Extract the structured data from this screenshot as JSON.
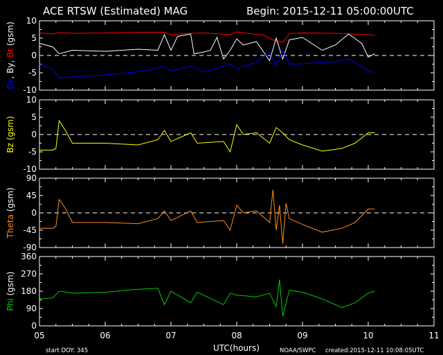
{
  "header": {
    "title": "ACE RTSW (Estimated) MAG",
    "begin": "Begin: 2015-12-11 05:00:00UTC"
  },
  "footer": {
    "start_doy": "start DOY:  345",
    "xlabel": "UTC(hours)",
    "agency": "NOAA/SWPC",
    "created": "created:2015-12-11 10:08:05UTC"
  },
  "colors": {
    "bt": "#ff0000",
    "by": "#ffffff",
    "bx": "#0000ff",
    "bz": "#ffff00",
    "theta": "#ff8c1a",
    "phi": "#00cc00",
    "axes": "#ffffff"
  },
  "chart_data": [
    {
      "type": "line",
      "panel": "magnetic-field",
      "ylabel_parts": [
        {
          "text": "Bx",
          "color": "#0000ff"
        },
        {
          "text": ", By, ",
          "color": "#ffffff"
        },
        {
          "text": "Bt",
          "color": "#ff0000"
        },
        {
          "text": " (gsm)",
          "color": "#ffffff"
        }
      ],
      "ylim": [
        -10,
        10
      ],
      "yticks": [
        "10",
        "5",
        "0",
        "-5",
        "-10"
      ],
      "zero_line": true,
      "series": [
        {
          "name": "Bt",
          "color": "#ff0000",
          "x": [
            5.0,
            5.2,
            5.3,
            5.5,
            6.0,
            6.5,
            6.9,
            7.0,
            7.3,
            7.5,
            7.9,
            8.0,
            8.2,
            8.4,
            8.55,
            8.7,
            8.8,
            9.0,
            9.5,
            10.0,
            10.1
          ],
          "y": [
            6.5,
            6.2,
            6.6,
            6.4,
            6.5,
            6.7,
            6.7,
            6.0,
            6.4,
            6.5,
            6.0,
            6.8,
            6.3,
            5.9,
            4.5,
            3.8,
            6.3,
            6.5,
            6.4,
            6.0,
            5.8
          ]
        },
        {
          "name": "By",
          "color": "#ffffff",
          "x": [
            5.0,
            5.2,
            5.3,
            5.5,
            6.0,
            6.5,
            6.8,
            6.9,
            7.0,
            7.1,
            7.3,
            7.35,
            7.5,
            7.6,
            7.7,
            7.8,
            7.9,
            8.0,
            8.1,
            8.3,
            8.5,
            8.6,
            8.7,
            8.8,
            9.0,
            9.3,
            9.5,
            9.7,
            9.9,
            10.0,
            10.1
          ],
          "y": [
            3.5,
            2.5,
            0.5,
            1.5,
            1.2,
            1.8,
            1.5,
            6.0,
            1.5,
            5.5,
            6.2,
            0.5,
            1.0,
            1.5,
            5.2,
            -1.0,
            1.5,
            4.8,
            3.0,
            4.0,
            -1.5,
            5.0,
            -1.0,
            4.5,
            5.2,
            1.5,
            3.0,
            6.2,
            3.5,
            -0.5,
            0.5
          ]
        },
        {
          "name": "Bx",
          "color": "#0000ff",
          "x": [
            5.0,
            5.2,
            5.3,
            5.5,
            6.0,
            6.5,
            6.9,
            7.0,
            7.3,
            7.5,
            7.9,
            8.0,
            8.3,
            8.5,
            8.6,
            8.7,
            8.8,
            9.0,
            9.5,
            9.7,
            9.8,
            10.0,
            10.1
          ],
          "y": [
            -2.5,
            -4.0,
            -6.5,
            -6.2,
            -5.6,
            -4.7,
            -3.2,
            -4.5,
            -3.0,
            -4.8,
            -2.5,
            -3.8,
            -2.0,
            1.0,
            -3.0,
            1.5,
            -2.5,
            -2.4,
            -1.8,
            -1.0,
            -2.0,
            -4.5,
            -5.0
          ]
        }
      ]
    },
    {
      "type": "line",
      "panel": "bz",
      "ylabel_parts": [
        {
          "text": "Bz  (gsm)",
          "color": "#ffff00"
        }
      ],
      "ylim": [
        -10,
        10
      ],
      "yticks": [
        "10",
        "5",
        "0",
        "-5",
        "-10"
      ],
      "zero_line": true,
      "series": [
        {
          "name": "Bz",
          "color": "#ffff00",
          "x": [
            5.0,
            5.2,
            5.25,
            5.3,
            5.4,
            5.5,
            6.0,
            6.5,
            6.8,
            6.9,
            7.0,
            7.3,
            7.4,
            7.8,
            7.9,
            8.0,
            8.1,
            8.3,
            8.5,
            8.6,
            8.7,
            8.8,
            9.0,
            9.3,
            9.6,
            9.8,
            10.0,
            10.1
          ],
          "y": [
            -4.5,
            -4.5,
            -4.0,
            4.0,
            1.0,
            -2.5,
            -2.5,
            -3.0,
            -1.5,
            1.2,
            -2.0,
            0.5,
            -2.5,
            -2.0,
            -5.0,
            2.8,
            0.0,
            0.5,
            -2.5,
            2.0,
            0.5,
            -1.5,
            -3.0,
            -4.8,
            -4.0,
            -2.5,
            0.5,
            0.5
          ]
        }
      ]
    },
    {
      "type": "line",
      "panel": "theta",
      "ylabel_parts": [
        {
          "text": "Theta",
          "color": "#ff8c1a"
        },
        {
          "text": " (gsm)",
          "color": "#ffffff"
        }
      ],
      "ylim": [
        -90,
        90
      ],
      "yticks": [
        "90",
        "45",
        "0",
        "-45",
        "-90"
      ],
      "zero_line": true,
      "series": [
        {
          "name": "Theta",
          "color": "#ff8c1a",
          "x": [
            5.0,
            5.2,
            5.25,
            5.3,
            5.4,
            5.5,
            6.0,
            6.5,
            6.8,
            6.9,
            7.0,
            7.3,
            7.4,
            7.8,
            7.9,
            8.0,
            8.1,
            8.3,
            8.5,
            8.55,
            8.6,
            8.65,
            8.7,
            8.75,
            8.8,
            9.0,
            9.3,
            9.6,
            9.8,
            10.0,
            10.1
          ],
          "y": [
            -40,
            -40,
            -35,
            35,
            10,
            -25,
            -25,
            -28,
            -15,
            5,
            -20,
            5,
            -25,
            -20,
            -45,
            20,
            0,
            5,
            -25,
            60,
            -45,
            20,
            -80,
            25,
            -15,
            -30,
            -50,
            -40,
            -25,
            10,
            10
          ]
        }
      ]
    },
    {
      "type": "line",
      "panel": "phi",
      "ylabel_parts": [
        {
          "text": "Phi",
          "color": "#00cc00"
        },
        {
          "text": "  (gsm)",
          "color": "#ffffff"
        }
      ],
      "ylim": [
        0,
        360
      ],
      "yticks": [
        "360",
        "270",
        "180",
        "90",
        "0"
      ],
      "zero_line": false,
      "series": [
        {
          "name": "Phi",
          "color": "#00cc00",
          "x": [
            5.0,
            5.2,
            5.3,
            5.5,
            6.0,
            6.5,
            6.8,
            6.9,
            7.0,
            7.3,
            7.4,
            7.8,
            7.9,
            8.0,
            8.3,
            8.5,
            8.6,
            8.65,
            8.7,
            8.8,
            9.0,
            9.3,
            9.6,
            9.8,
            10.0,
            10.1
          ],
          "y": [
            140,
            145,
            180,
            170,
            175,
            190,
            195,
            110,
            180,
            120,
            175,
            110,
            170,
            160,
            150,
            170,
            100,
            240,
            50,
            185,
            175,
            140,
            95,
            120,
            170,
            180
          ]
        }
      ]
    }
  ],
  "x_axis": {
    "range": [
      5,
      11
    ],
    "ticks": [
      "05",
      "06",
      "07",
      "08",
      "09",
      "10",
      "11"
    ]
  }
}
